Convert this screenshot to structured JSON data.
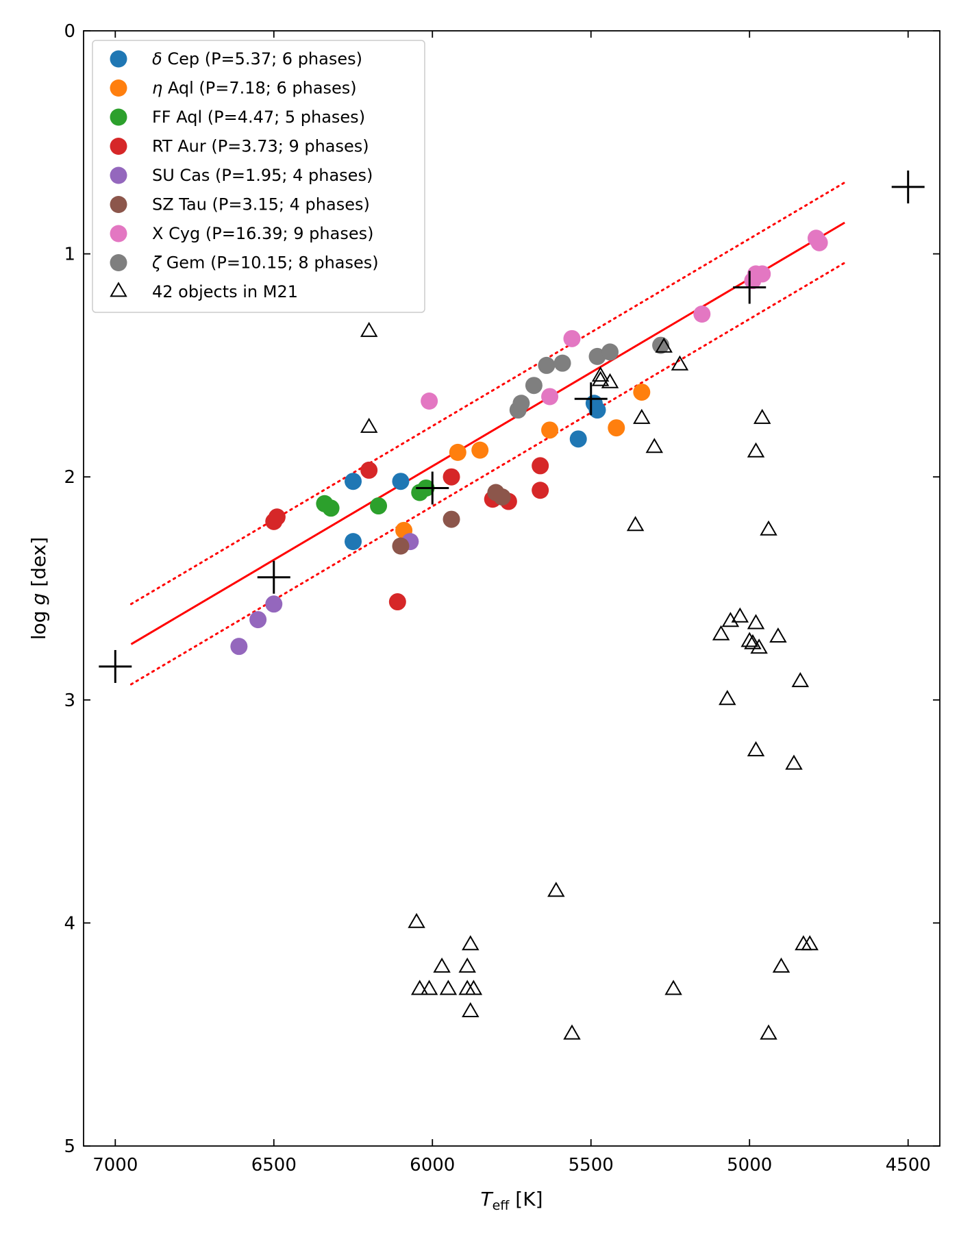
{
  "chart_data": {
    "type": "scatter",
    "xlabel": "T_eff [K]",
    "xlabel_main": "T",
    "xlabel_sub": "eff",
    "xlabel_unit": " [K]",
    "ylabel": "log g [dex]",
    "ylabel_log": "log",
    "ylabel_g": "g",
    "ylabel_unit": " [dex]",
    "xlim": [
      7100,
      4400
    ],
    "ylim": [
      5,
      0
    ],
    "x_inverted": true,
    "y_inverted": true,
    "xticks": [
      7000,
      6500,
      6000,
      5500,
      5000,
      4500
    ],
    "yticks": [
      0,
      1,
      2,
      3,
      4,
      5
    ],
    "legend_position": "upper-left",
    "series": [
      {
        "name": "δ Cep (P=5.37; 6 phases)",
        "symbol": "δ",
        "rest": " Cep (P=5.37; 6 phases)",
        "color": "#1f77b4",
        "points": [
          [
            6250,
            2.02
          ],
          [
            6250,
            2.29
          ],
          [
            6100,
            2.02
          ],
          [
            5540,
            1.83
          ],
          [
            5490,
            1.67
          ],
          [
            5480,
            1.7
          ]
        ]
      },
      {
        "name": "η Aql (P=7.18; 6 phases)",
        "symbol": "η",
        "rest": " Aql (P=7.18; 6 phases)",
        "color": "#ff7f0e",
        "points": [
          [
            6090,
            2.24
          ],
          [
            5920,
            1.89
          ],
          [
            5850,
            1.88
          ],
          [
            5630,
            1.79
          ],
          [
            5420,
            1.78
          ],
          [
            5340,
            1.62
          ]
        ]
      },
      {
        "name": "FF Aql (P=4.47; 5 phases)",
        "symbol": "",
        "rest": "FF Aql (P=4.47; 5 phases)",
        "color": "#2ca02c",
        "points": [
          [
            6340,
            2.12
          ],
          [
            6320,
            2.14
          ],
          [
            6170,
            2.13
          ],
          [
            6040,
            2.07
          ],
          [
            6020,
            2.05
          ]
        ]
      },
      {
        "name": "RT Aur (P=3.73; 9 phases)",
        "symbol": "",
        "rest": "RT Aur (P=3.73; 9 phases)",
        "color": "#d62728",
        "points": [
          [
            6500,
            2.2
          ],
          [
            6490,
            2.18
          ],
          [
            6200,
            1.97
          ],
          [
            6110,
            2.56
          ],
          [
            5940,
            2.0
          ],
          [
            5810,
            2.1
          ],
          [
            5760,
            2.11
          ],
          [
            5660,
            1.95
          ],
          [
            5660,
            2.06
          ]
        ]
      },
      {
        "name": "SU Cas (P=1.95; 4 phases)",
        "symbol": "",
        "rest": "SU Cas (P=1.95; 4 phases)",
        "color": "#9467bd",
        "points": [
          [
            6610,
            2.76
          ],
          [
            6550,
            2.64
          ],
          [
            6500,
            2.57
          ],
          [
            6070,
            2.29
          ]
        ]
      },
      {
        "name": "SZ Tau (P=3.15; 4 phases)",
        "symbol": "",
        "rest": "SZ Tau (P=3.15; 4 phases)",
        "color": "#8c564b",
        "points": [
          [
            6100,
            2.31
          ],
          [
            5940,
            2.19
          ],
          [
            5800,
            2.07
          ],
          [
            5780,
            2.09
          ]
        ]
      },
      {
        "name": "X Cyg (P=16.39; 9 phases)",
        "symbol": "",
        "rest": "X Cyg (P=16.39; 9 phases)",
        "color": "#e377c2",
        "points": [
          [
            6010,
            1.66
          ],
          [
            5630,
            1.64
          ],
          [
            5560,
            1.38
          ],
          [
            5150,
            1.27
          ],
          [
            4990,
            1.12
          ],
          [
            4980,
            1.09
          ],
          [
            4960,
            1.09
          ],
          [
            4790,
            0.93
          ],
          [
            4780,
            0.95
          ]
        ]
      },
      {
        "name": "ζ Gem (P=10.15; 8 phases)",
        "symbol": "ζ",
        "rest": " Gem (P=10.15; 8 phases)",
        "color": "#7f7f7f",
        "points": [
          [
            5730,
            1.7
          ],
          [
            5720,
            1.67
          ],
          [
            5680,
            1.59
          ],
          [
            5640,
            1.5
          ],
          [
            5590,
            1.49
          ],
          [
            5480,
            1.46
          ],
          [
            5440,
            1.44
          ],
          [
            5280,
            1.41
          ]
        ]
      },
      {
        "name": "42 objects in M21",
        "symbol": "",
        "rest": "42 objects in M21",
        "color": "#000000",
        "marker": "triangle",
        "points": [
          [
            6200,
            1.35
          ],
          [
            6200,
            1.78
          ],
          [
            5470,
            1.55
          ],
          [
            5440,
            1.58
          ],
          [
            5220,
            1.5
          ],
          [
            5340,
            1.74
          ],
          [
            4960,
            1.74
          ],
          [
            5300,
            1.87
          ],
          [
            4980,
            1.89
          ],
          [
            5360,
            2.22
          ],
          [
            4940,
            2.24
          ],
          [
            5090,
            2.71
          ],
          [
            5060,
            2.65
          ],
          [
            5030,
            2.63
          ],
          [
            4980,
            2.66
          ],
          [
            4910,
            2.72
          ],
          [
            5000,
            2.74
          ],
          [
            4990,
            2.75
          ],
          [
            4970,
            2.77
          ],
          [
            4840,
            2.92
          ],
          [
            5070,
            3.0
          ],
          [
            4980,
            3.23
          ],
          [
            4860,
            3.29
          ],
          [
            5610,
            3.86
          ],
          [
            6050,
            4.0
          ],
          [
            5880,
            4.1
          ],
          [
            4830,
            4.1
          ],
          [
            4810,
            4.1
          ],
          [
            5970,
            4.2
          ],
          [
            5890,
            4.2
          ],
          [
            4900,
            4.2
          ],
          [
            6040,
            4.3
          ],
          [
            6010,
            4.3
          ],
          [
            5950,
            4.3
          ],
          [
            5890,
            4.3
          ],
          [
            5870,
            4.3
          ],
          [
            5240,
            4.3
          ],
          [
            5880,
            4.4
          ],
          [
            5560,
            4.5
          ],
          [
            4940,
            4.5
          ],
          [
            5470,
            1.57
          ],
          [
            5270,
            1.42
          ]
        ]
      }
    ],
    "crosses": [
      [
        7000,
        2.85
      ],
      [
        6500,
        2.45
      ],
      [
        6000,
        2.05
      ],
      [
        5500,
        1.65
      ],
      [
        5000,
        1.15
      ],
      [
        4500,
        0.7
      ]
    ],
    "fit_line": {
      "color": "#ff0000",
      "x_start": 6950,
      "x_end": 4700,
      "y_at_x_start": 2.75,
      "y_at_x_end": 0.86,
      "offset": 0.18
    }
  }
}
